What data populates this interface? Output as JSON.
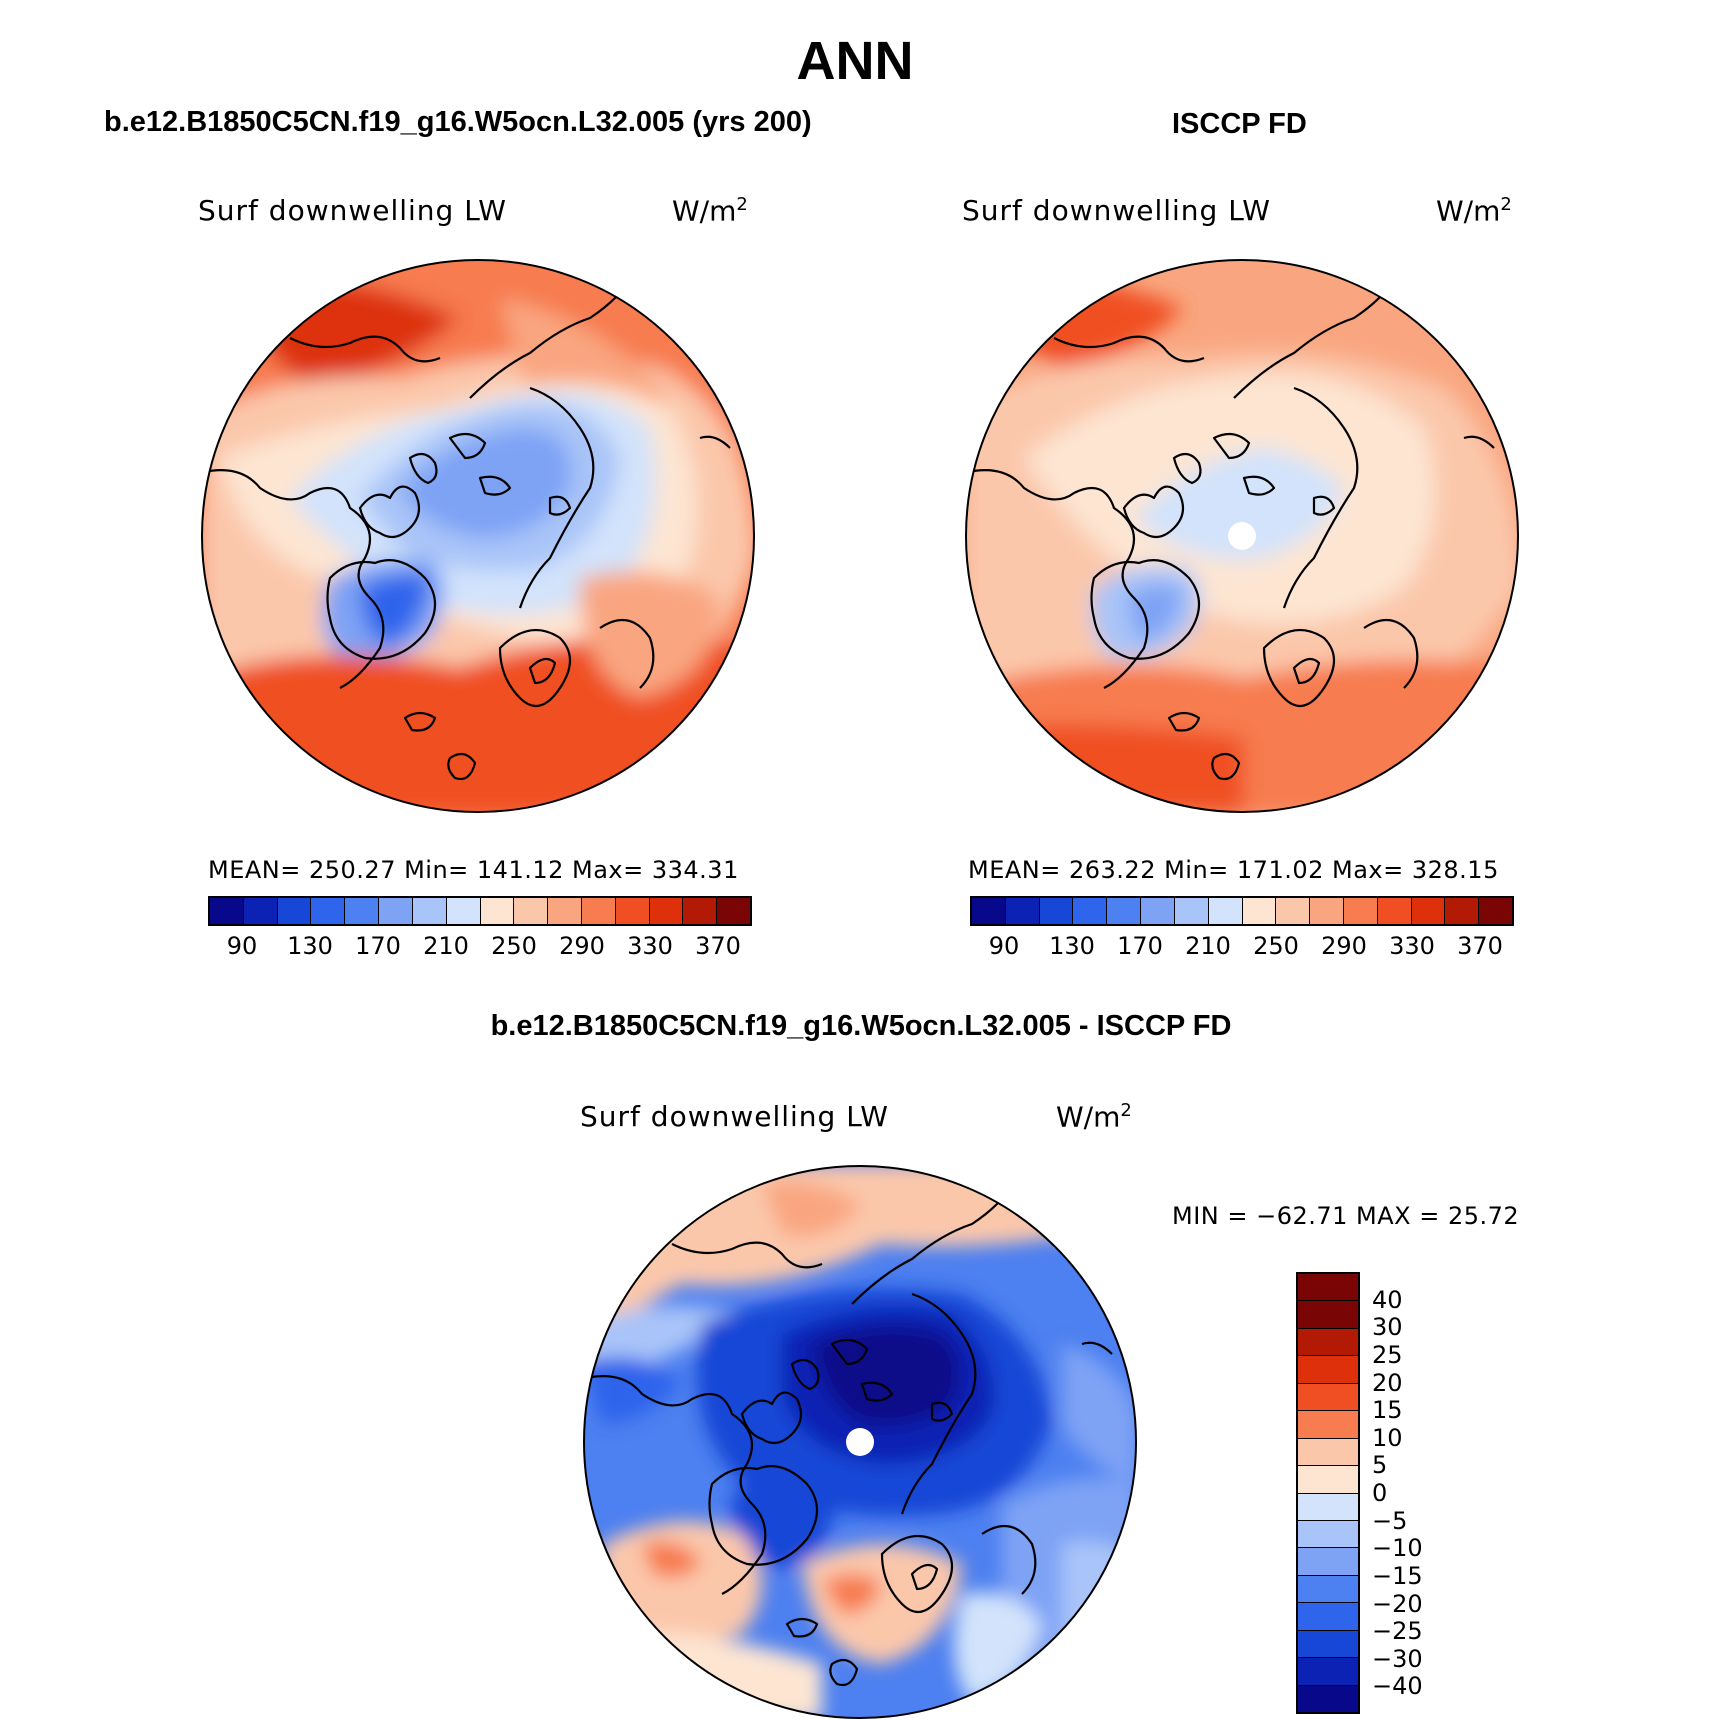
{
  "title": "ANN",
  "panels": [
    {
      "title": "b.e12.B1850C5CN.f19_g16.W5ocn.L32.005 (yrs 200)",
      "variable": "Surf downwelling LW",
      "units_base": "W/m",
      "units_exp": "2",
      "stats": "MEAN= 250.27   Min= 141.12   Max= 334.31"
    },
    {
      "title": "ISCCP FD",
      "variable": "Surf downwelling LW",
      "units_base": "W/m",
      "units_exp": "2",
      "stats": "MEAN= 263.22   Min= 171.02   Max= 328.15"
    },
    {
      "title": "b.e12.B1850C5CN.f19_g16.W5ocn.L32.005 - ISCCP FD",
      "variable": "Surf downwelling LW",
      "units_base": "W/m",
      "units_exp": "2",
      "stats": "MIN = −62.71 MAX =   25.72"
    }
  ],
  "colorbar_abs": {
    "colors": [
      "#08088a",
      "#0c22b4",
      "#1747d6",
      "#2f64ec",
      "#4d80f0",
      "#7ea3f5",
      "#a9c4f8",
      "#d2e3fb",
      "#fde5d2",
      "#fbc7ab",
      "#f9a680",
      "#f77c50",
      "#f04f23",
      "#dd300b",
      "#b21a06",
      "#7a0505"
    ],
    "labels": [
      "90",
      "130",
      "170",
      "210",
      "250",
      "290",
      "330",
      "370"
    ]
  },
  "colorbar_diff": {
    "colors": [
      "#7a0505",
      "#b21a06",
      "#dd300b",
      "#f04f23",
      "#f77c50",
      "#fbc7ab",
      "#fde5d2",
      "#d2e3fb",
      "#a9c4f8",
      "#7ea3f5",
      "#4d80f0",
      "#2f64ec",
      "#1747d6",
      "#0c22b4",
      "#08088a"
    ],
    "labels": [
      "40",
      "30",
      "25",
      "20",
      "15",
      "10",
      "5",
      "0",
      "−5",
      "−10",
      "−15",
      "−20",
      "−25",
      "−30",
      "−40"
    ]
  },
  "chart_data": [
    {
      "type": "heatmap",
      "title": "b.e12.B1850C5CN.f19_g16.W5ocn.L32.005 (yrs 200)",
      "variable": "Surf downwelling LW",
      "units": "W/m2",
      "projection": "north polar stereographic",
      "mean": 250.27,
      "min": 141.12,
      "max": 334.31,
      "levels": [
        90,
        130,
        170,
        210,
        250,
        290,
        330,
        370
      ]
    },
    {
      "type": "heatmap",
      "title": "ISCCP FD",
      "variable": "Surf downwelling LW",
      "units": "W/m2",
      "projection": "north polar stereographic",
      "mean": 263.22,
      "min": 171.02,
      "max": 328.15,
      "levels": [
        90,
        130,
        170,
        210,
        250,
        290,
        330,
        370
      ]
    },
    {
      "type": "heatmap",
      "title": "b.e12.B1850C5CN.f19_g16.W5ocn.L32.005 - ISCCP FD",
      "variable": "Surf downwelling LW",
      "units": "W/m2",
      "projection": "north polar stereographic",
      "min": -62.71,
      "max": 25.72,
      "levels": [
        -40,
        -30,
        -25,
        -20,
        -15,
        -10,
        -5,
        0,
        5,
        10,
        15,
        20,
        25,
        30,
        40
      ]
    }
  ]
}
